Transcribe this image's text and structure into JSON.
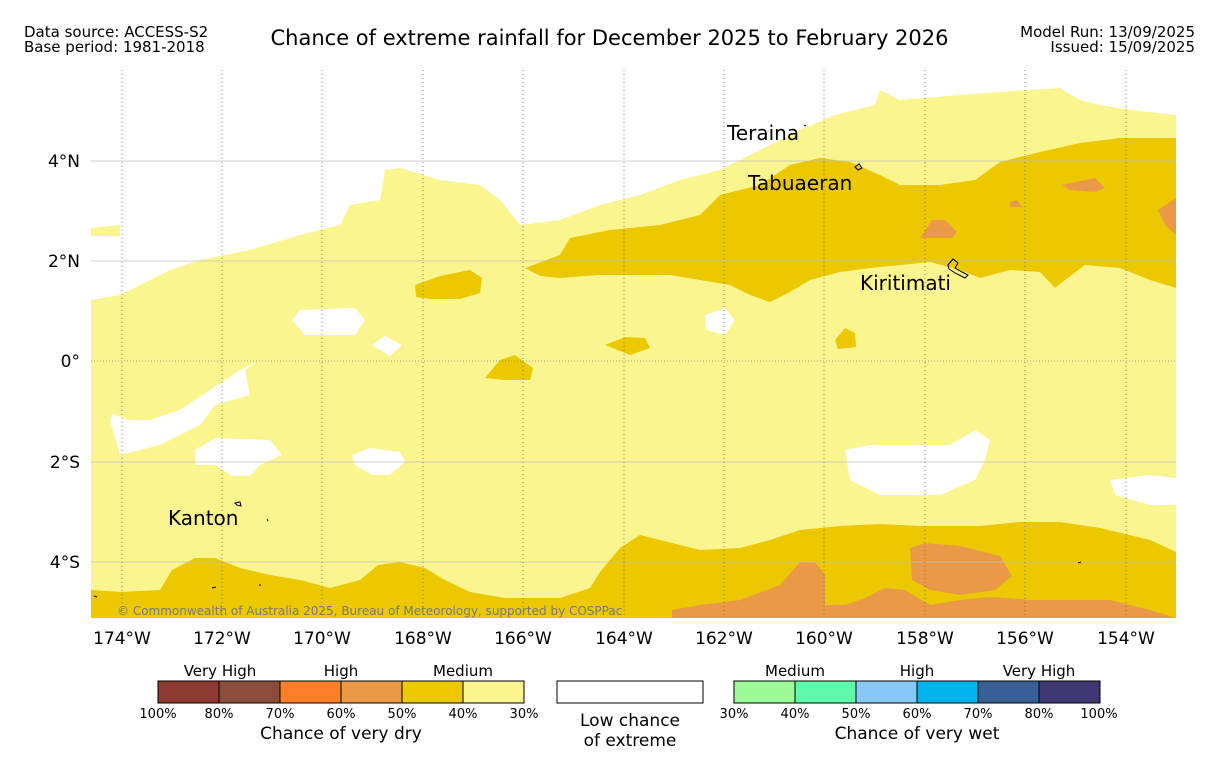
{
  "header": {
    "left_line1": "Data source: ACCESS-S2",
    "left_line2": "Base period: 1981-2018",
    "title": "Chance of extreme rainfall for December 2025 to February 2026",
    "right_line1": "Model Run: 13/09/2025",
    "right_line2": "Issued: 15/09/2025"
  },
  "map": {
    "lon_labels": [
      "174°W",
      "172°W",
      "170°W",
      "168°W",
      "166°W",
      "164°W",
      "162°W",
      "160°W",
      "158°W",
      "156°W",
      "154°W"
    ],
    "lat_labels": [
      "4°N",
      "2°N",
      "0°",
      "2°S",
      "4°S"
    ],
    "places": [
      "Teraina",
      "Tabuaeran",
      "Kiritimati",
      "Kanton"
    ],
    "copyright": "© Commonwealth of Australia 2025, Bureau of Meteorology, supported by COSPPac",
    "colors": {
      "medium_dry_light": "#fbf58f",
      "medium_dry": "#ebc800",
      "high_dry": "#ea9a47"
    }
  },
  "legend": {
    "dry": {
      "headings": [
        "Very High",
        "High",
        "Medium"
      ],
      "colors": [
        "#8c3a32",
        "#8c4c3b",
        "#fd7f27",
        "#ea9a47",
        "#ebc800",
        "#fbf58f"
      ],
      "ticks": [
        "100%",
        "80%",
        "70%",
        "60%",
        "50%",
        "40%",
        "30%"
      ],
      "caption": "Chance of very dry"
    },
    "low": {
      "line1": "Low chance",
      "line2": "of extreme"
    },
    "wet": {
      "headings": [
        "Medium",
        "High",
        "Very High"
      ],
      "colors": [
        "#9cfa98",
        "#5cfaaa",
        "#88c8f7",
        "#00b4ec",
        "#376097",
        "#403873"
      ],
      "ticks": [
        "30%",
        "40%",
        "50%",
        "60%",
        "70%",
        "80%",
        "100%"
      ],
      "caption": "Chance of very wet"
    }
  }
}
